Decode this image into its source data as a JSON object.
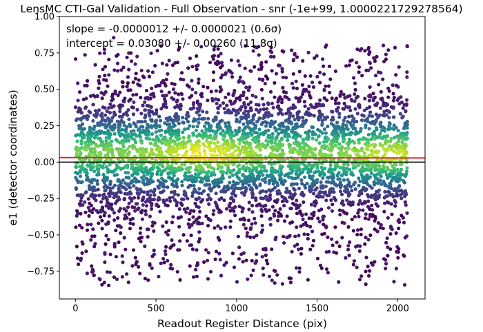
{
  "chart_data": {
    "type": "scatter",
    "title": "LensMC CTI-Gal Validation - Full Observation - snr (-1e+99, 1.0000221729278564)",
    "xlabel": "Readout Register Distance (pix)",
    "ylabel": "e1 (detector coordinates)",
    "xlim": [
      -100,
      2170
    ],
    "ylim": [
      -0.94,
      1.0
    ],
    "xticks": [
      0,
      500,
      1000,
      1500,
      2000
    ],
    "yticks": [
      -0.75,
      -0.5,
      -0.25,
      0.0,
      0.25,
      0.5,
      0.75,
      1.0
    ],
    "xtick_labels": [
      "0",
      "500",
      "1000",
      "1500",
      "2000"
    ],
    "ytick_labels": [
      "−0.75",
      "−0.50",
      "−0.25",
      "0.00",
      "0.25",
      "0.50",
      "0.75",
      "1.00"
    ],
    "annotations": [
      "slope = -0.0000012 +/- 0.0000021 (0.6σ)",
      "intercept = 0.03080 +/- 0.00260 (11.8σ)"
    ],
    "fit_line": {
      "slope": -1.2e-06,
      "intercept": 0.0308,
      "color": "#d62728"
    },
    "zero_line": {
      "y": 0.0,
      "color": "#000000"
    },
    "point_density": {
      "x_range": [
        0,
        2060
      ],
      "y_core": [
        -0.25,
        0.35
      ],
      "y_extent": [
        -0.85,
        0.95
      ],
      "colormap": "viridis"
    }
  }
}
